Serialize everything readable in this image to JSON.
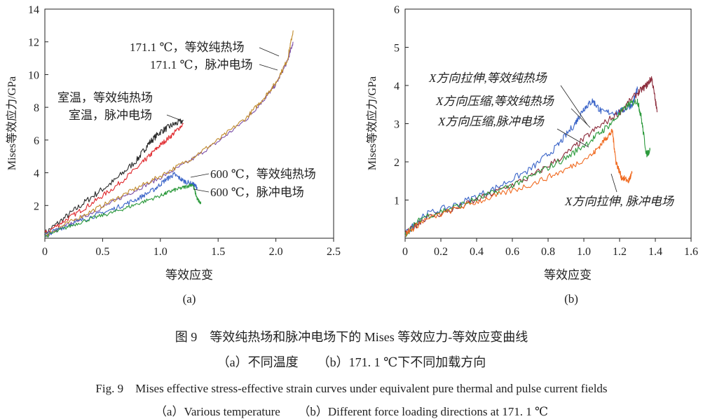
{
  "chart_data": [
    {
      "id": "a",
      "type": "line",
      "panel_label": "(a)",
      "xlabel": "等效应变",
      "ylabel": "Mises等效应力/GPa",
      "xlim": [
        0,
        2.5
      ],
      "ylim": [
        0,
        14
      ],
      "xticks": [
        "0",
        "0.5",
        "1.0",
        "1.5",
        "2.0",
        "2.5"
      ],
      "xtick_values": [
        0,
        0.5,
        1.0,
        1.5,
        2.0,
        2.5
      ],
      "yticks": [
        "2",
        "4",
        "6",
        "8",
        "10",
        "12",
        "14"
      ],
      "ytick_values": [
        2,
        4,
        6,
        8,
        10,
        12,
        14
      ],
      "series": [
        {
          "name": "室温，等效纯热场",
          "color": "#2a2a2a",
          "noise": 0.2,
          "points": [
            [
              0,
              0.3
            ],
            [
              0.2,
              1.4
            ],
            [
              0.4,
              2.5
            ],
            [
              0.6,
              3.5
            ],
            [
              0.8,
              4.8
            ],
            [
              0.9,
              5.8
            ],
            [
              1.0,
              6.5
            ],
            [
              1.1,
              6.9
            ],
            [
              1.2,
              7.2
            ]
          ]
        },
        {
          "name": "室温，脉冲电场",
          "color": "#e0282d",
          "noise": 0.15,
          "points": [
            [
              0,
              0.3
            ],
            [
              0.2,
              1.2
            ],
            [
              0.4,
              2.1
            ],
            [
              0.6,
              3.1
            ],
            [
              0.8,
              4.3
            ],
            [
              0.9,
              5.0
            ],
            [
              1.0,
              5.7
            ],
            [
              1.1,
              6.3
            ],
            [
              1.2,
              7.0
            ]
          ]
        },
        {
          "name": "171.1 ℃，等效纯热场",
          "color": "#7b4fa8",
          "noise": 0.12,
          "points": [
            [
              0,
              0.1
            ],
            [
              0.25,
              1.0
            ],
            [
              0.5,
              1.9
            ],
            [
              0.75,
              2.8
            ],
            [
              1.0,
              3.7
            ],
            [
              1.25,
              4.7
            ],
            [
              1.5,
              5.9
            ],
            [
              1.75,
              7.3
            ],
            [
              1.9,
              8.5
            ],
            [
              2.0,
              9.4
            ],
            [
              2.1,
              10.8
            ],
            [
              2.15,
              12.0
            ]
          ]
        },
        {
          "name": "171.1 ℃，脉冲电场",
          "color": "#c08a2a",
          "noise": 0.14,
          "points": [
            [
              0,
              0.2
            ],
            [
              0.25,
              1.1
            ],
            [
              0.5,
              2.0
            ],
            [
              0.75,
              2.9
            ],
            [
              1.0,
              3.8
            ],
            [
              1.25,
              4.8
            ],
            [
              1.5,
              6.0
            ],
            [
              1.75,
              7.4
            ],
            [
              1.9,
              8.6
            ],
            [
              2.0,
              9.5
            ],
            [
              2.1,
              10.9
            ],
            [
              2.15,
              12.7
            ]
          ]
        },
        {
          "name": "600 ℃，等效纯热场",
          "color": "#3a64c8",
          "noise": 0.15,
          "points": [
            [
              0,
              0.2
            ],
            [
              0.2,
              0.8
            ],
            [
              0.4,
              1.3
            ],
            [
              0.6,
              1.8
            ],
            [
              0.8,
              2.4
            ],
            [
              0.95,
              3.0
            ],
            [
              1.05,
              3.6
            ],
            [
              1.12,
              3.9
            ],
            [
              1.2,
              3.5
            ],
            [
              1.28,
              3.3
            ],
            [
              1.32,
              3.1
            ]
          ]
        },
        {
          "name": "600 ℃，脉冲电场",
          "color": "#2c9a3c",
          "noise": 0.12,
          "points": [
            [
              0,
              0.1
            ],
            [
              0.2,
              0.7
            ],
            [
              0.4,
              1.2
            ],
            [
              0.6,
              1.6
            ],
            [
              0.8,
              2.1
            ],
            [
              1.0,
              2.6
            ],
            [
              1.1,
              2.9
            ],
            [
              1.2,
              3.1
            ],
            [
              1.28,
              3.3
            ],
            [
              1.32,
              2.4
            ],
            [
              1.35,
              2.1
            ]
          ]
        }
      ],
      "annotations": [
        {
          "text": "171.1 ℃，等效纯热场",
          "target": "171.1 ℃，等效纯热场"
        },
        {
          "text": "171.1 ℃，脉冲电场",
          "target": "171.1 ℃，脉冲电场"
        },
        {
          "text": "室温，等效纯热场",
          "target": "室温，等效纯热场"
        },
        {
          "text": "室温，脉冲电场",
          "target": "室温，脉冲电场"
        },
        {
          "text": "600 ℃，等效纯热场",
          "target": "600 ℃，等效纯热场"
        },
        {
          "text": "600 ℃，脉冲电场",
          "target": "600 ℃，脉冲电场"
        }
      ]
    },
    {
      "id": "b",
      "type": "line",
      "panel_label": "(b)",
      "xlabel": "等效应变",
      "ylabel": "Mises等效应力/GPa",
      "xlim": [
        0,
        1.6
      ],
      "ylim": [
        0,
        6
      ],
      "xticks": [
        "0",
        "0.2",
        "0.4",
        "0.6",
        "0.8",
        "1.0",
        "1.2",
        "1.4",
        "1.6"
      ],
      "xtick_values": [
        0,
        0.2,
        0.4,
        0.6,
        0.8,
        1.0,
        1.2,
        1.4,
        1.6
      ],
      "yticks": [
        "1",
        "2",
        "3",
        "4",
        "5",
        "6"
      ],
      "ytick_values": [
        1,
        2,
        3,
        4,
        5,
        6
      ],
      "series": [
        {
          "name": "X方向拉伸,等效纯热场",
          "color": "#3a64c8",
          "noise": 0.09,
          "points": [
            [
              0,
              0.1
            ],
            [
              0.1,
              0.6
            ],
            [
              0.3,
              0.9
            ],
            [
              0.5,
              1.3
            ],
            [
              0.7,
              1.8
            ],
            [
              0.85,
              2.4
            ],
            [
              0.95,
              3.0
            ],
            [
              1.0,
              3.4
            ],
            [
              1.05,
              3.6
            ],
            [
              1.1,
              3.3
            ],
            [
              1.2,
              3.3
            ],
            [
              1.27,
              3.5
            ],
            [
              1.3,
              3.9
            ]
          ]
        },
        {
          "name": "X方向压缩,等效纯热场",
          "color": "#8b2a3a",
          "noise": 0.09,
          "points": [
            [
              0,
              0.1
            ],
            [
              0.1,
              0.5
            ],
            [
              0.3,
              0.8
            ],
            [
              0.5,
              1.2
            ],
            [
              0.7,
              1.6
            ],
            [
              0.9,
              2.2
            ],
            [
              1.05,
              2.8
            ],
            [
              1.2,
              3.3
            ],
            [
              1.3,
              3.8
            ],
            [
              1.35,
              4.0
            ],
            [
              1.38,
              4.2
            ],
            [
              1.41,
              3.3
            ]
          ]
        },
        {
          "name": "X方向压缩,脉冲电场",
          "color": "#2c9a3c",
          "noise": 0.09,
          "points": [
            [
              0,
              0.1
            ],
            [
              0.1,
              0.55
            ],
            [
              0.3,
              0.85
            ],
            [
              0.5,
              1.2
            ],
            [
              0.7,
              1.6
            ],
            [
              0.9,
              2.1
            ],
            [
              1.05,
              2.6
            ],
            [
              1.15,
              3.0
            ],
            [
              1.25,
              3.5
            ],
            [
              1.3,
              3.6
            ],
            [
              1.32,
              3.2
            ],
            [
              1.35,
              2.2
            ],
            [
              1.37,
              2.3
            ]
          ]
        },
        {
          "name": "X方向拉伸, 脉冲电场",
          "color": "#f06a20",
          "noise": 0.08,
          "points": [
            [
              0,
              0.1
            ],
            [
              0.1,
              0.45
            ],
            [
              0.3,
              0.8
            ],
            [
              0.5,
              1.1
            ],
            [
              0.7,
              1.4
            ],
            [
              0.9,
              1.8
            ],
            [
              1.05,
              2.2
            ],
            [
              1.12,
              2.6
            ],
            [
              1.16,
              2.8
            ],
            [
              1.18,
              2.0
            ],
            [
              1.21,
              1.6
            ],
            [
              1.25,
              1.5
            ],
            [
              1.27,
              1.7
            ]
          ]
        }
      ],
      "annotations": [
        {
          "text": "X方向拉伸,等效纯热场",
          "target": "X方向拉伸,等效纯热场"
        },
        {
          "text": "X方向压缩,等效纯热场",
          "target": "X方向压缩,等效纯热场"
        },
        {
          "text": "X方向压缩,脉冲电场",
          "target": "X方向压缩,脉冲电场"
        },
        {
          "text": "X方向拉伸, 脉冲电场",
          "target": "X方向拉伸, 脉冲电场"
        }
      ]
    }
  ],
  "caption": {
    "cn_title": "图 9　等效纯热场和脉冲电场下的 Mises 等效应力-等效应变曲线",
    "cn_sub": "（a）不同温度　　（b）171. 1 ℃下不同加载方向",
    "en_title": "Fig. 9　Mises effective stress-effective strain curves under equivalent pure thermal and pulse current fields",
    "en_sub": "（a）Various temperature　　（b）Different force loading directions at 171. 1 ℃"
  }
}
